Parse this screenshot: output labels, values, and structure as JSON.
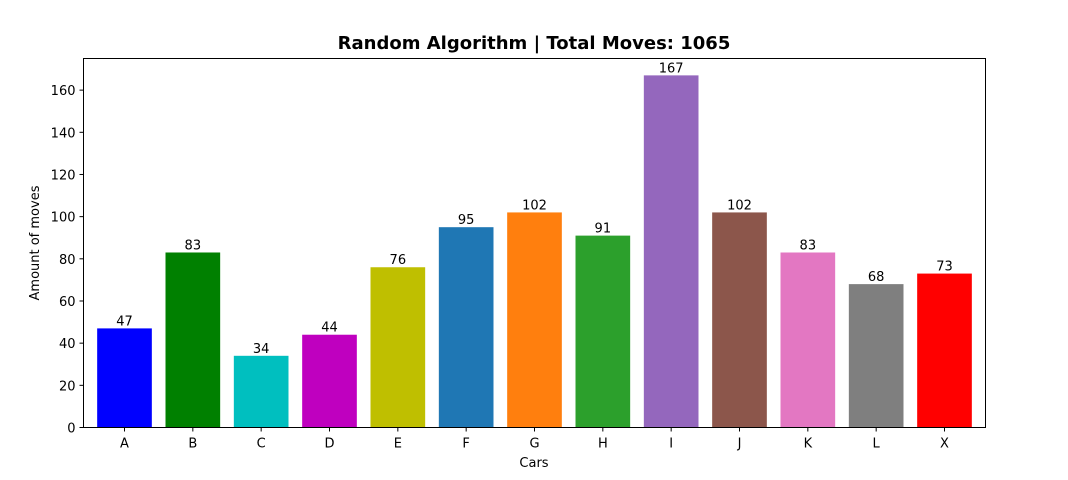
{
  "chart_data": {
    "type": "bar",
    "title": "Random Algorithm | Total Moves: 1065",
    "xlabel": "Cars",
    "ylabel": "Amount of moves",
    "categories": [
      "A",
      "B",
      "C",
      "D",
      "E",
      "F",
      "G",
      "H",
      "I",
      "J",
      "K",
      "L",
      "X"
    ],
    "values": [
      47,
      83,
      34,
      44,
      76,
      95,
      102,
      91,
      167,
      102,
      83,
      68,
      73
    ],
    "colors": [
      "#0000ff",
      "#008000",
      "#00bfbf",
      "#bf00bf",
      "#bfbf00",
      "#1f77b4",
      "#ff7f0e",
      "#2ca02c",
      "#9467bd",
      "#8c564b",
      "#e377c2",
      "#7f7f7f",
      "#ff0000"
    ],
    "ylim": [
      0,
      175
    ],
    "yticks": [
      0,
      20,
      40,
      60,
      80,
      100,
      120,
      140,
      160
    ],
    "grid": false,
    "legend": "none"
  }
}
